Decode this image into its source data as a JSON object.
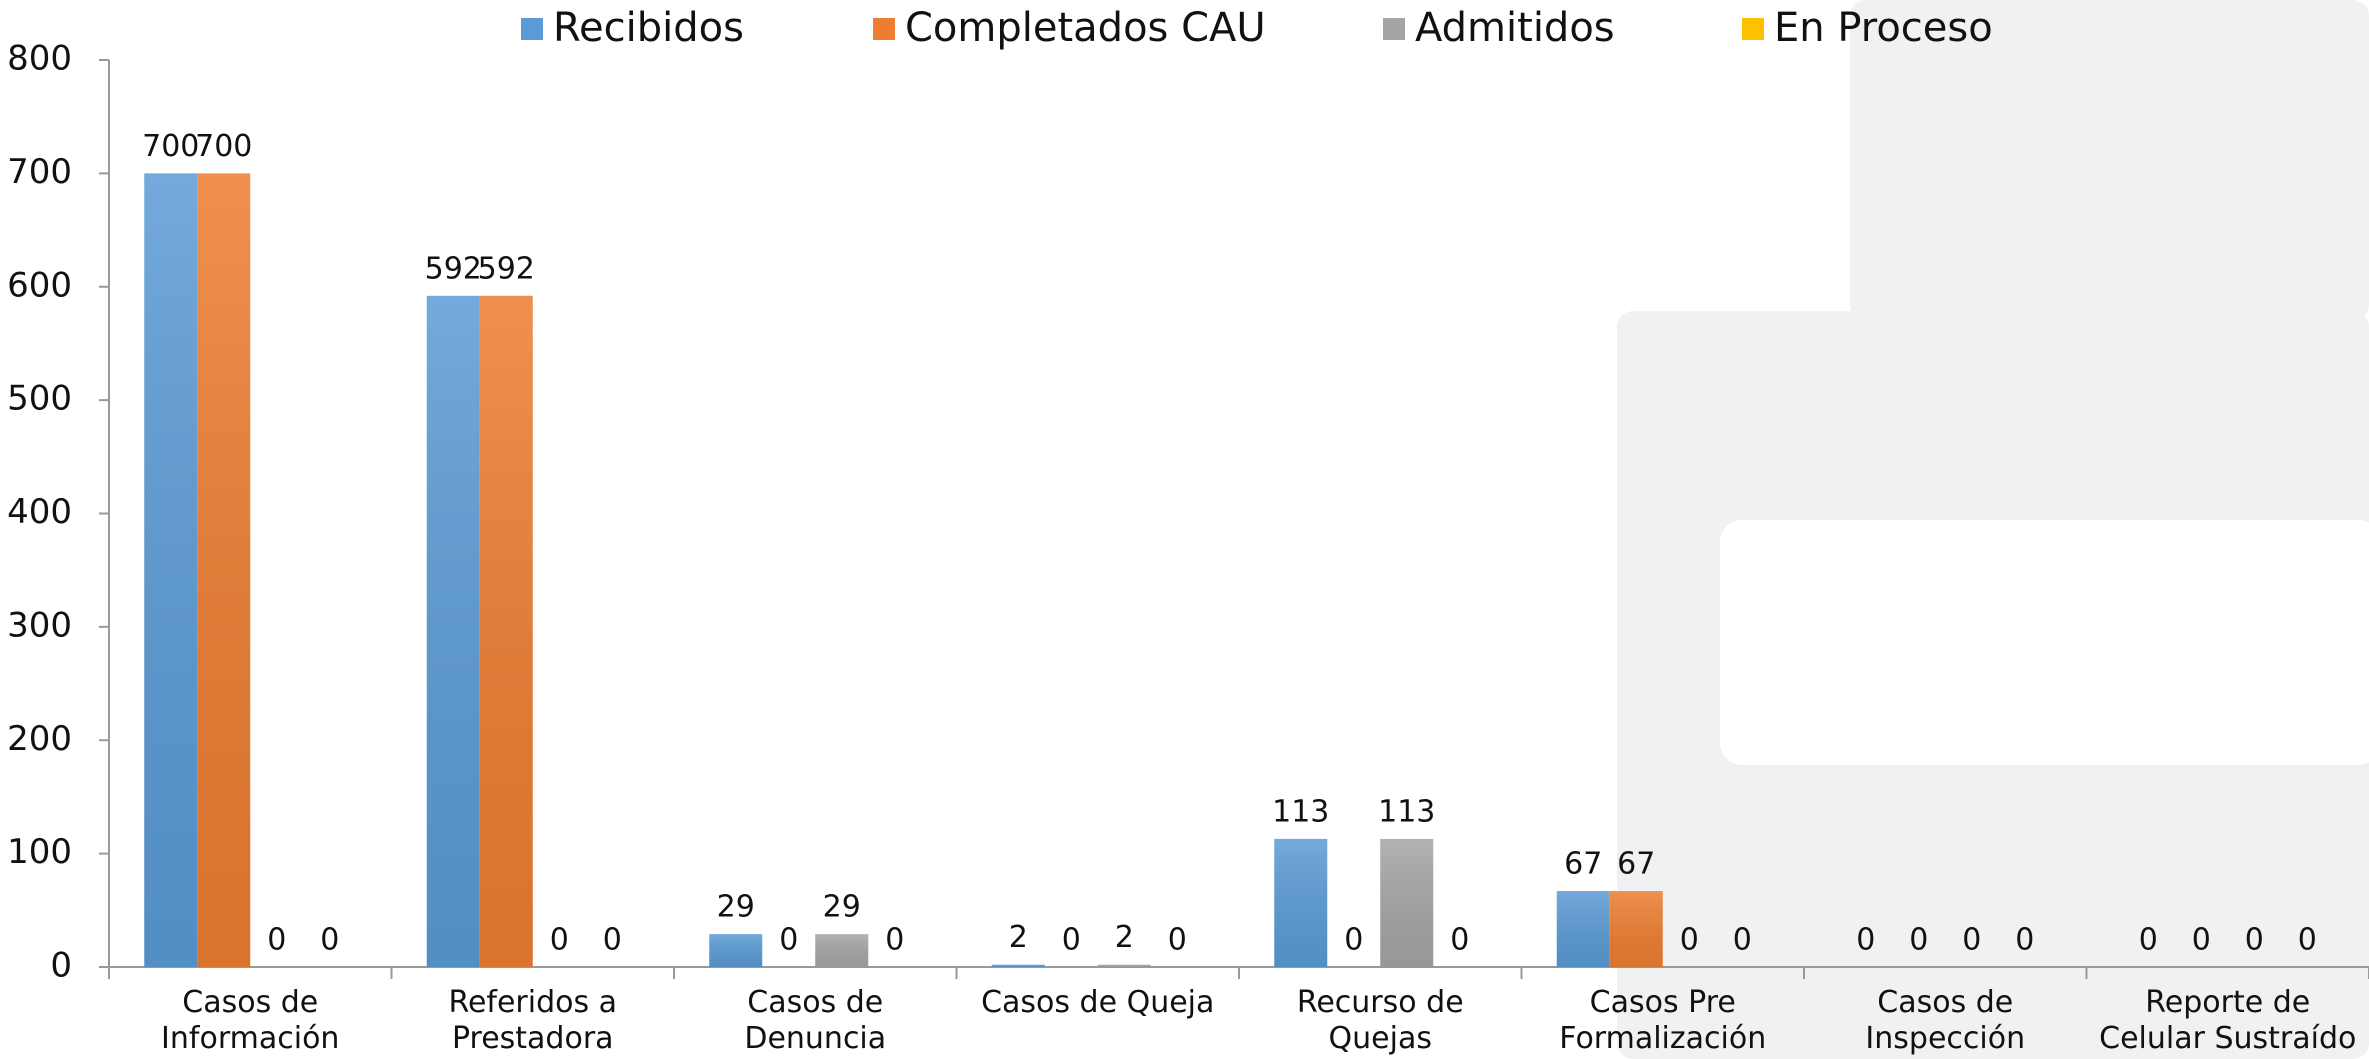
{
  "chart_data": {
    "type": "bar",
    "categories": [
      "Casos de Información",
      "Referidos a Prestadora",
      "Casos de Denuncia",
      "Casos de Queja",
      "Recurso de Quejas",
      "Casos Pre Formalización",
      "Casos de Inspección",
      "Reporte de Celular Sustraído"
    ],
    "series": [
      {
        "name": "Recibidos",
        "color": "#5b9bd5",
        "values": [
          700,
          592,
          29,
          2,
          113,
          67,
          0,
          0
        ]
      },
      {
        "name": "Completados CAU",
        "color": "#ed7d31",
        "values": [
          700,
          592,
          0,
          0,
          0,
          67,
          0,
          0
        ]
      },
      {
        "name": "Admitidos",
        "color": "#a5a5a5",
        "values": [
          0,
          0,
          29,
          2,
          113,
          0,
          0,
          0
        ]
      },
      {
        "name": "En Proceso",
        "color": "#ffc000",
        "values": [
          0,
          0,
          0,
          0,
          0,
          0,
          0,
          0
        ]
      }
    ],
    "ylim": [
      0,
      800
    ],
    "yticks": [
      0,
      100,
      200,
      300,
      400,
      500,
      600,
      700,
      800
    ],
    "grid": false,
    "legend": "top"
  }
}
